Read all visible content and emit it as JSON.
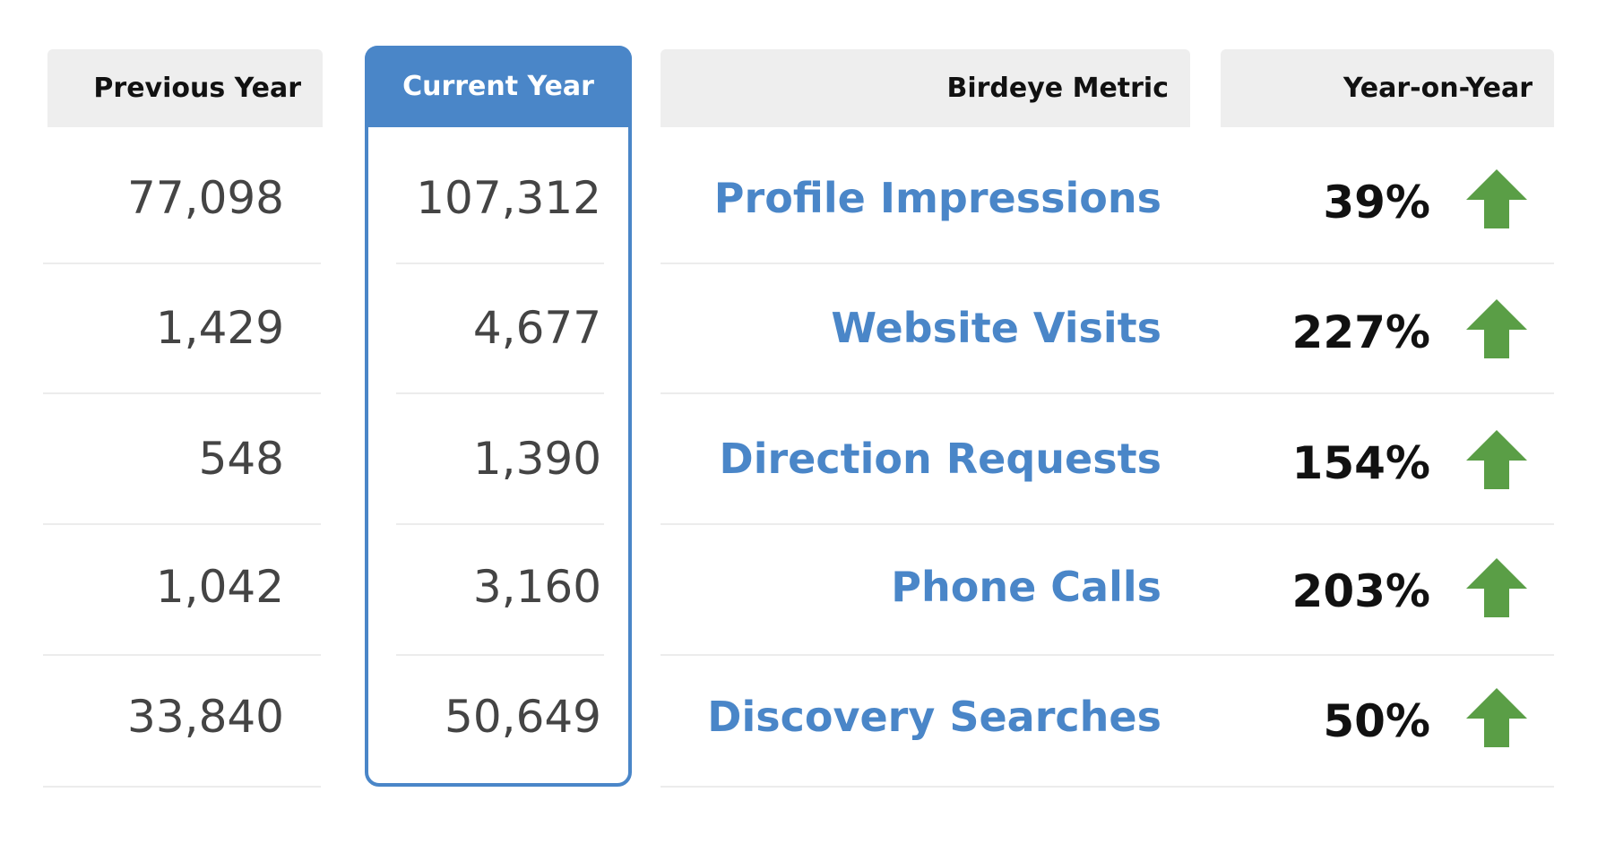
{
  "table": {
    "header": [
      "Previous Year",
      "Current Year",
      "Birdeye Metric",
      "Year-on-Year"
    ],
    "rows": [
      [
        "77,098",
        "107,312",
        "Profile Impressions",
        "39%"
      ],
      [
        "1,429",
        "4,677",
        "Website Visits",
        "227%"
      ],
      [
        "548",
        "1,390",
        "Direction Requests",
        "154%"
      ],
      [
        "1,042",
        "3,160",
        "Phone Calls",
        "203%"
      ],
      [
        "33,840",
        "50,649",
        "Discovery Searches",
        "50%"
      ]
    ]
  }
}
